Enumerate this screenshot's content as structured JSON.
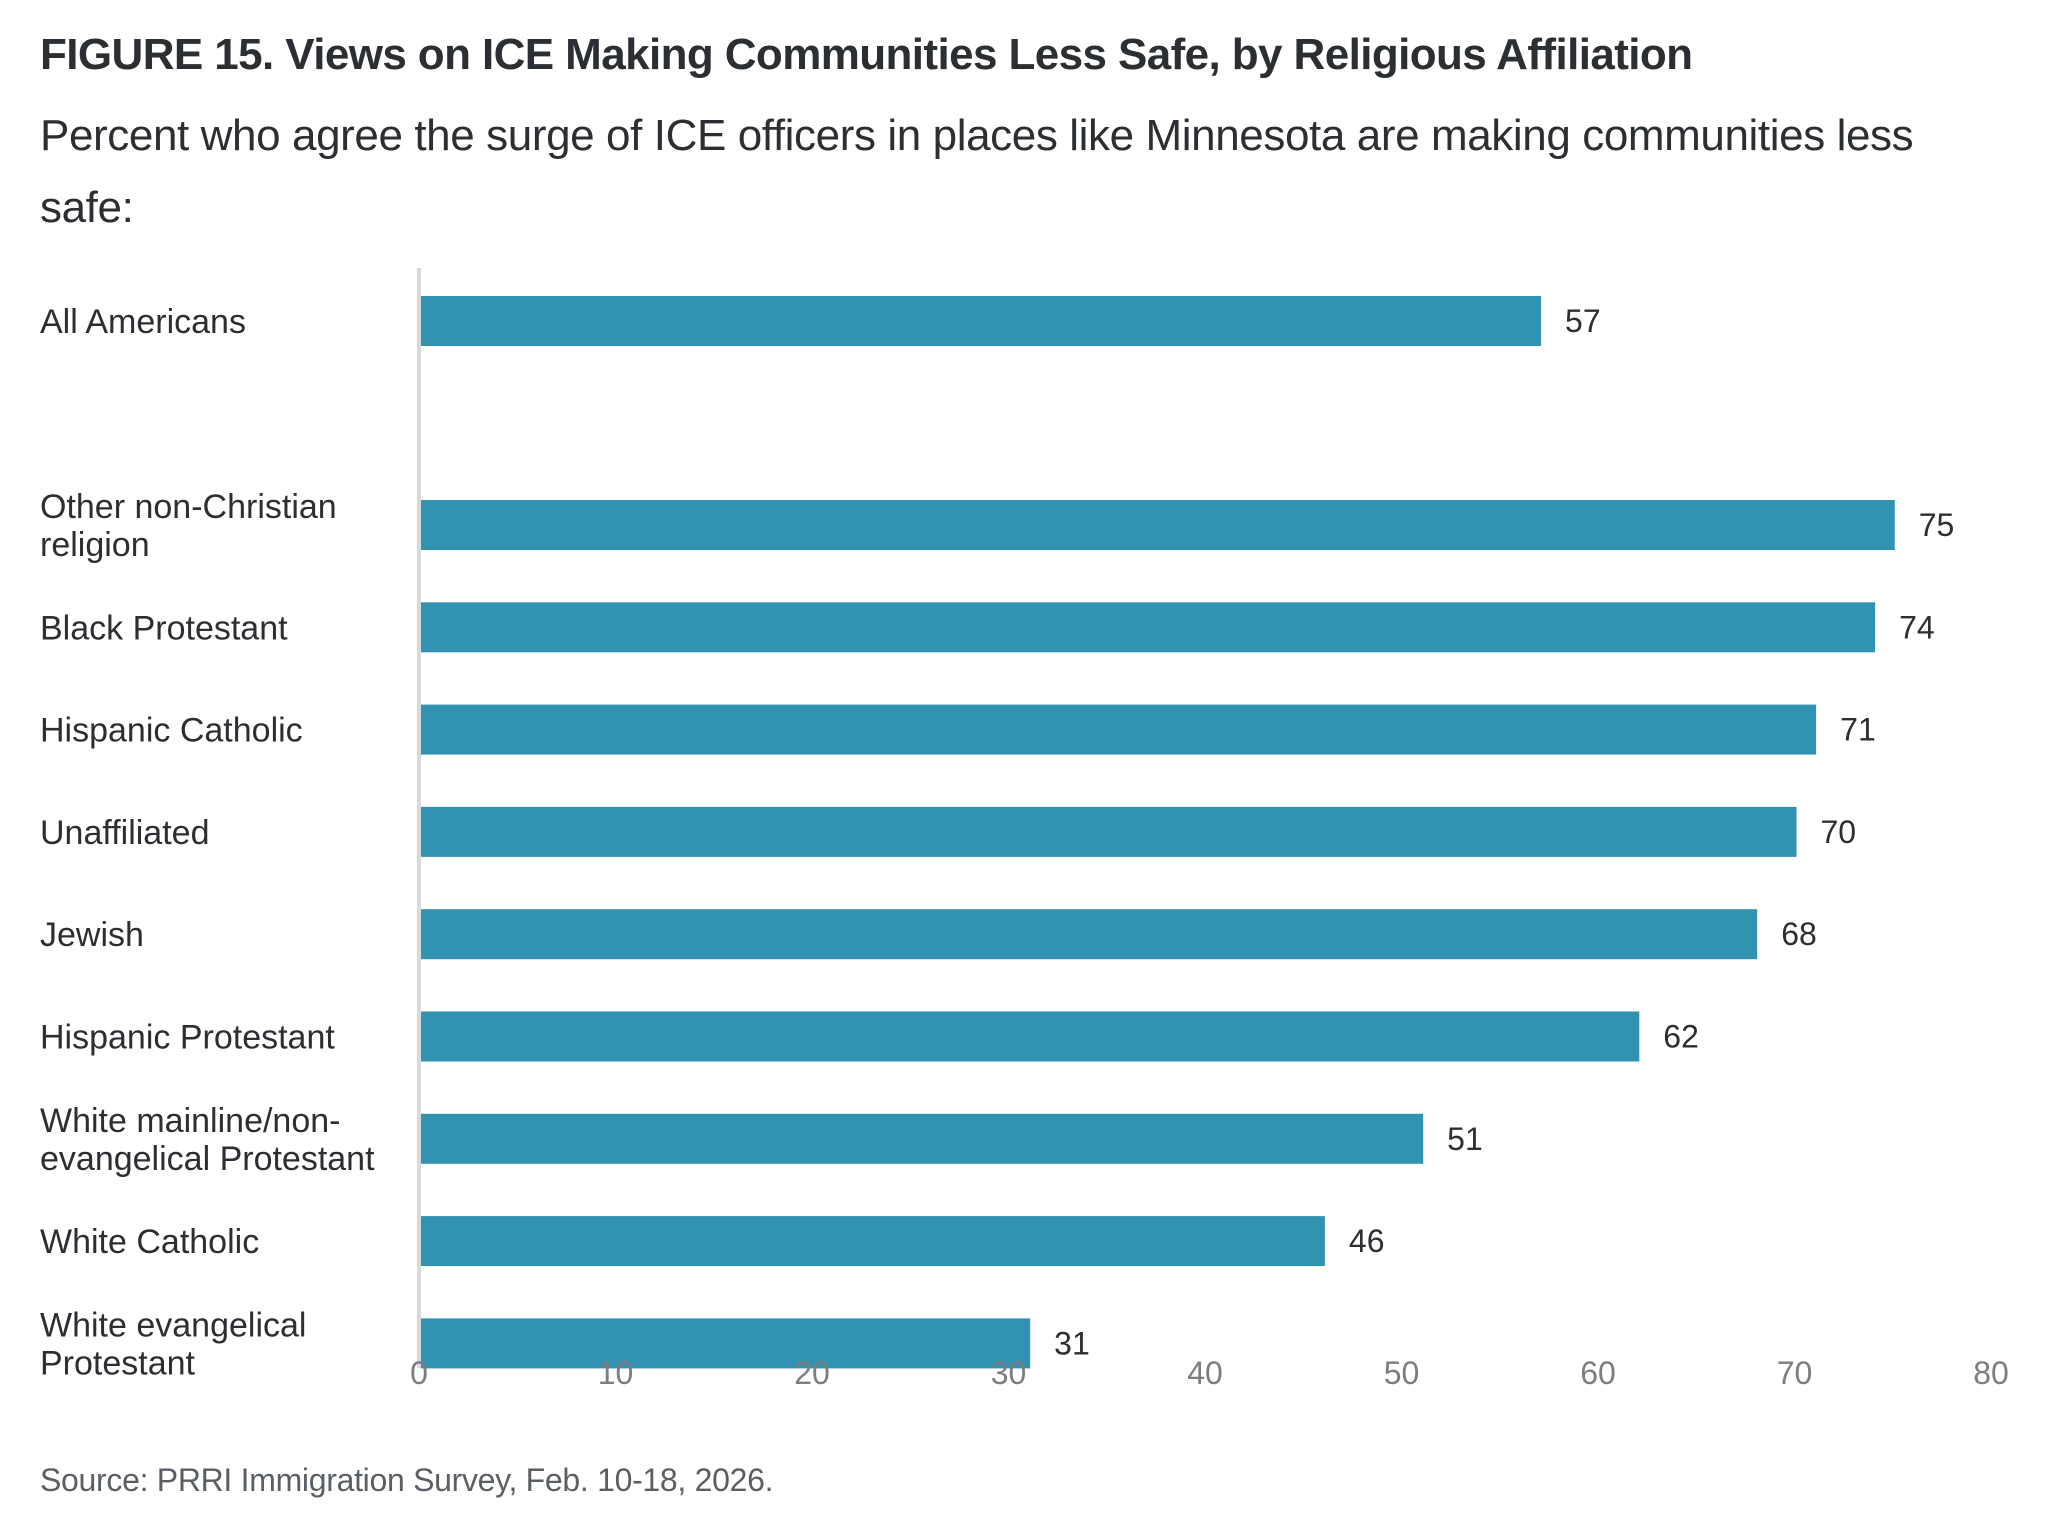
{
  "header": {
    "title": "FIGURE 15.  Views on ICE Making Communities Less Safe, by Religious Affiliation",
    "subtitle": "Percent who agree the surge of ICE officers in places like Minnesota are making communities less safe:"
  },
  "footer": {
    "source": "Source: PRRI Immigration Survey, Feb. 10-18, 2026."
  },
  "colors": {
    "bar": "#3292b2",
    "axis_line": "#d9d9d9",
    "text": "#2b2e33",
    "tick_text": "#7a7d82"
  },
  "chart_data": {
    "type": "bar",
    "orientation": "horizontal",
    "title": "FIGURE 15.  Views on ICE Making Communities Less Safe, by Religious Affiliation",
    "subtitle": "Percent who agree the surge of ICE officers in places like Minnesota are making communities less safe:",
    "xlabel": "",
    "ylabel": "",
    "xlim": [
      0,
      80
    ],
    "xticks": [
      0,
      10,
      20,
      30,
      40,
      50,
      60,
      70,
      80
    ],
    "grid": false,
    "categories": [
      [
        "All Americans"
      ],
      [
        "Other non-Christian",
        "religion"
      ],
      [
        "Black Protestant"
      ],
      [
        "Hispanic Catholic"
      ],
      [
        "Unaffiliated"
      ],
      [
        "Jewish"
      ],
      [
        "Hispanic Protestant"
      ],
      [
        "White mainline/non-",
        "evangelical Protestant"
      ],
      [
        "White Catholic"
      ],
      [
        "White evangelical",
        "Protestant"
      ]
    ],
    "category_names": [
      "All Americans",
      "Other non-Christian religion",
      "Black Protestant",
      "Hispanic Catholic",
      "Unaffiliated",
      "Jewish",
      "Hispanic Protestant",
      "White mainline/non-evangelical Protestant",
      "White Catholic",
      "White evangelical Protestant"
    ],
    "values": [
      57,
      75,
      74,
      71,
      70,
      68,
      62,
      51,
      46,
      31
    ],
    "group_break_after_index": 0,
    "data_labels": true
  }
}
